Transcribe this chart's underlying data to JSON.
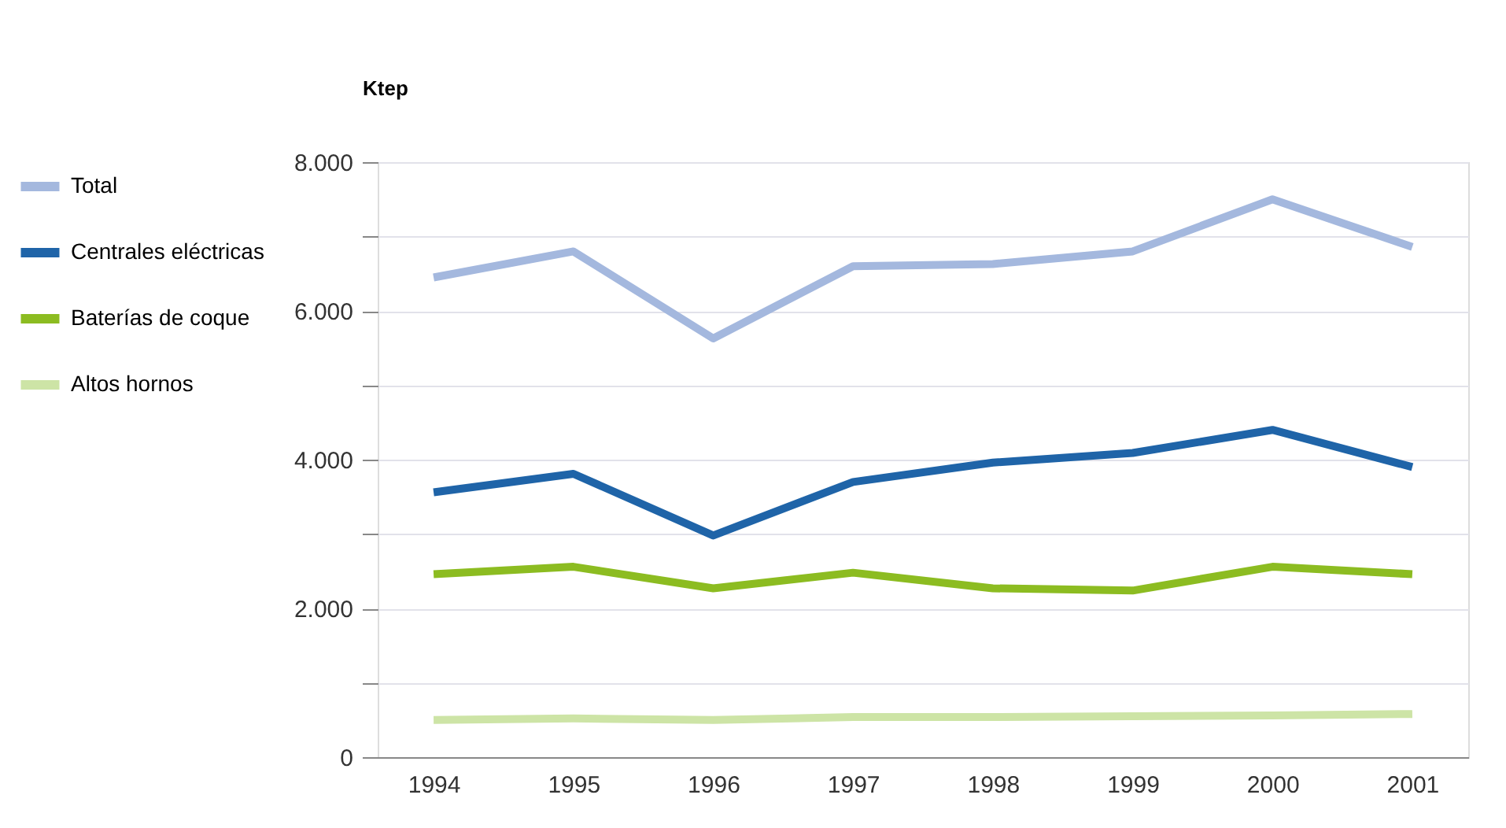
{
  "chart_data": {
    "type": "line",
    "ylabel": "Ktep",
    "categories": [
      "1994",
      "1995",
      "1996",
      "1997",
      "1998",
      "1999",
      "2000",
      "2001"
    ],
    "series": [
      {
        "name": "Total",
        "color": "#a4b8de",
        "values": [
          6450,
          6800,
          5630,
          6600,
          6630,
          6800,
          7500,
          6860
        ]
      },
      {
        "name": "Centrales eléctricas",
        "color": "#1f64a8",
        "values": [
          3560,
          3810,
          2980,
          3700,
          3960,
          4090,
          4400,
          3900
        ]
      },
      {
        "name": "Baterías de coque",
        "color": "#8cbc21",
        "values": [
          2460,
          2560,
          2270,
          2480,
          2270,
          2240,
          2560,
          2460
        ]
      },
      {
        "name": "Altos hornos",
        "color": "#cde4a6",
        "values": [
          500,
          520,
          500,
          540,
          540,
          550,
          560,
          580
        ]
      }
    ],
    "ylim": [
      0,
      8000
    ],
    "yticks": [
      0,
      {
        "value": 1000,
        "label": null
      },
      {
        "value": 2000,
        "label": "2.000"
      },
      {
        "value": 3000,
        "label": null
      },
      {
        "value": 4000,
        "label": "4.000"
      },
      {
        "value": 5000,
        "label": null
      },
      {
        "value": 6000,
        "label": "6.000"
      },
      {
        "value": 7000,
        "label": null
      },
      {
        "value": 8000,
        "label": "8.000"
      }
    ],
    "grid": "y",
    "legend": "left",
    "marker": "none",
    "line_style": "solid"
  }
}
